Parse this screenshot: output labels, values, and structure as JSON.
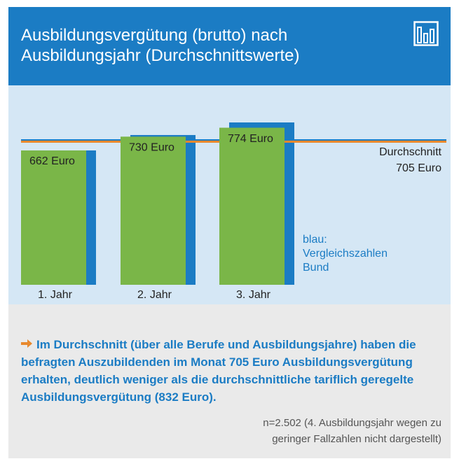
{
  "chart_data": {
    "type": "bar",
    "title": "Ausbildungsvergütung (brutto) nach Ausbildungsjahr (Durchschnittswerte)",
    "categories": [
      "1. Jahr",
      "2. Jahr",
      "3. Jahr"
    ],
    "series": [
      {
        "color": "#7ab648",
        "values": [
          662,
          730,
          774
        ],
        "value_labels": [
          "662 Euro",
          "730 Euro",
          "774 Euro"
        ]
      },
      {
        "name": "blau: Vergleichszahlen Bund",
        "color": "#1b7cc4",
        "values": [
          662,
          738,
          800
        ]
      }
    ],
    "average": {
      "label": "Durchschnitt",
      "value": 705,
      "value_label": "705 Euro",
      "color": "#e8892e"
    },
    "comparison_average": {
      "value": 712,
      "color": "#1b7cc4"
    },
    "ylim": [
      0,
      900
    ],
    "summary": "Im Durchschnitt (über alle Berufe und Ausbildungsjahre) haben die befragten Auszubildenden im Monat 705 Euro Ausbildungsvergütung erhalten, deutlich weniger als die durchschnittliche tariflich geregelte Ausbildungsvergütung (832 Euro).",
    "note": "n=2.502 (4. Ausbildungsjahr wegen zu geringer Fallzahlen nicht dargestellt)"
  }
}
